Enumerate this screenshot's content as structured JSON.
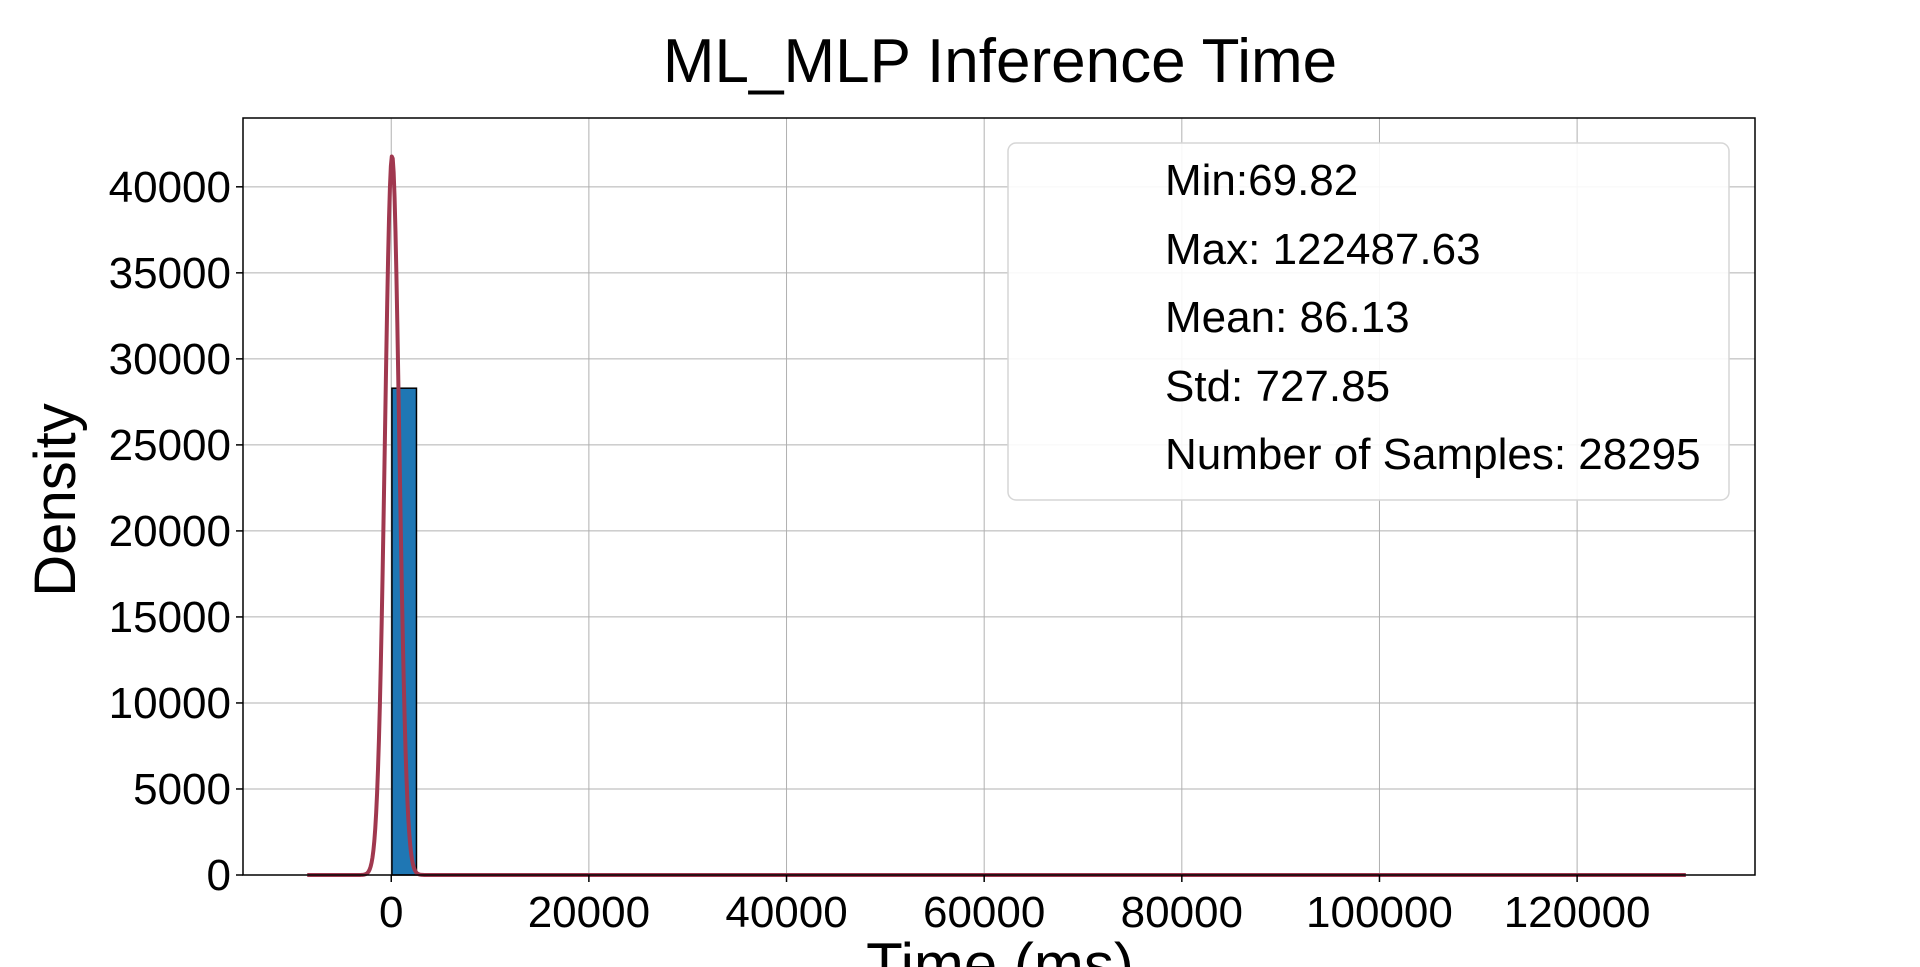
{
  "chart_data": {
    "type": "bar",
    "title": "ML_MLP Inference Time",
    "xlabel": "Time (ms)",
    "ylabel": "Density",
    "xlim": [
      -15000,
      138000
    ],
    "ylim": [
      0,
      44000
    ],
    "x_ticks": [
      0,
      20000,
      40000,
      60000,
      80000,
      100000,
      120000
    ],
    "y_ticks": [
      0,
      5000,
      10000,
      15000,
      20000,
      25000,
      30000,
      35000,
      40000
    ],
    "grid": true,
    "bars": [
      {
        "x0": 69.82,
        "x1": 2553,
        "value": 28295
      }
    ],
    "curve": {
      "type": "normal-pdf-scaled",
      "mean": 86.13,
      "std": 727.85,
      "peak": 41800,
      "x_range": [
        -8500,
        131000
      ],
      "color": "#a0384f"
    },
    "bar_color": "#1f77b4",
    "bar_edge_color": "#000000",
    "legend_placement": "top-right",
    "legend_lines": [
      "Min:69.82",
      "Max: 122487.63",
      "Mean: 86.13",
      "Std: 727.85",
      "Number of Samples: 28295"
    ]
  }
}
